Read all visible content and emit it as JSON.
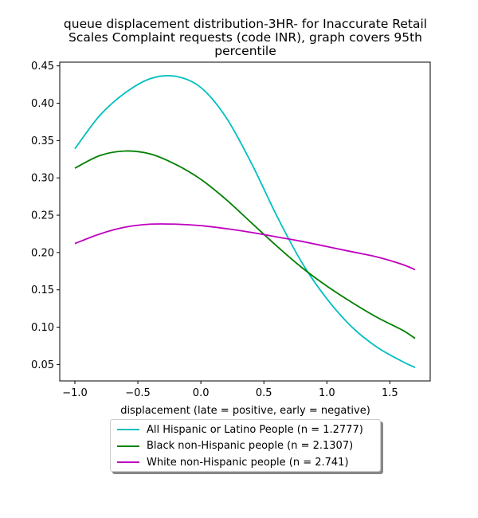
{
  "chart_data": {
    "type": "line",
    "title_lines": [
      "queue displacement distribution-3HR-  for Inaccurate Retail",
      "Scales Complaint  requests (code INR), graph covers 95th",
      "percentile"
    ],
    "xlabel": "displacement (late = positive, early = negative)",
    "ylabel": "",
    "xlim": [
      -1.12,
      1.82
    ],
    "ylim": [
      0.028,
      0.455
    ],
    "x_ticks": [
      -1.0,
      -0.5,
      0.0,
      0.5,
      1.0,
      1.5
    ],
    "x_tick_labels": [
      "−1.0",
      "−0.5",
      "0.0",
      "0.5",
      "1.0",
      "1.5"
    ],
    "y_ticks": [
      0.05,
      0.1,
      0.15,
      0.2,
      0.25,
      0.3,
      0.35,
      0.4,
      0.45
    ],
    "y_tick_labels": [
      "0.05",
      "0.10",
      "0.15",
      "0.20",
      "0.25",
      "0.30",
      "0.35",
      "0.40",
      "0.45"
    ],
    "grid": false,
    "legend_position": "below",
    "x": [
      -1.0,
      -0.8,
      -0.6,
      -0.4,
      -0.2,
      0.0,
      0.2,
      0.4,
      0.6,
      0.8,
      1.0,
      1.2,
      1.4,
      1.6,
      1.7
    ],
    "series": [
      {
        "name": "All Hispanic or Latino People (n = 1.2777)",
        "color": "#00bfbf",
        "values": [
          0.339,
          0.384,
          0.414,
          0.433,
          0.436,
          0.421,
          0.381,
          0.32,
          0.25,
          0.187,
          0.138,
          0.1,
          0.073,
          0.054,
          0.046
        ]
      },
      {
        "name": "Black non-Hispanic people (n = 2.1307)",
        "color": "#008000",
        "values": [
          0.313,
          0.33,
          0.336,
          0.332,
          0.318,
          0.298,
          0.271,
          0.24,
          0.209,
          0.18,
          0.155,
          0.133,
          0.113,
          0.096,
          0.085
        ]
      },
      {
        "name": "White non-Hispanic people (n = 2.741)",
        "color": "#bf00bf",
        "values": [
          0.212,
          0.225,
          0.234,
          0.238,
          0.238,
          0.236,
          0.232,
          0.227,
          0.221,
          0.215,
          0.208,
          0.201,
          0.194,
          0.184,
          0.177
        ]
      }
    ]
  }
}
